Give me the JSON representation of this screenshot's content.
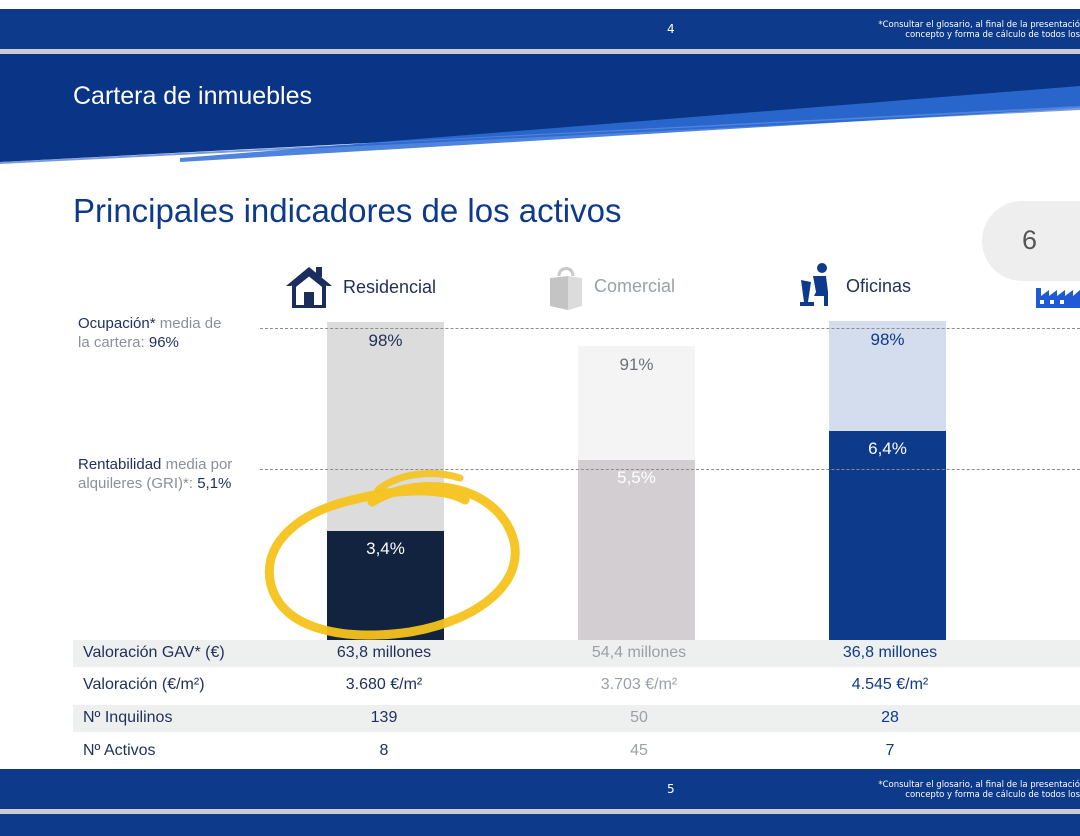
{
  "top_strip": {
    "page_number": "4",
    "disclaimer_line1": "*Consultar el glosario, al final de la presentació",
    "disclaimer_line2": "concepto y forma de cálculo de todos los"
  },
  "header": {
    "title": "Cartera de inmuebles"
  },
  "slide_title": "Principales indicadores de los activos",
  "page_badge": "6",
  "categories": [
    {
      "label": "Residencial",
      "icon": "house-icon",
      "color": "#1a2d5c"
    },
    {
      "label": "Comercial",
      "icon": "shopping-bag-icon",
      "color": "#9aa0a8"
    },
    {
      "label": "Oficinas",
      "icon": "office-worker-icon",
      "color": "#0d3a8a"
    },
    {
      "label": "",
      "icon": "factory-icon",
      "color": "#1f5ad6"
    }
  ],
  "notes": {
    "occupancy": {
      "key": "Ocupación*",
      "text1": " media de",
      "text2": "la cartera: ",
      "value": "96%"
    },
    "yield": {
      "key": "Rentabilidad",
      "text1": " media por",
      "text2": "alquileres (GRI)*: ",
      "value": "5,1%"
    }
  },
  "chart_data": {
    "type": "bar",
    "categories": [
      "Residencial",
      "Comercial",
      "Oficinas"
    ],
    "series": [
      {
        "name": "Ocupación",
        "values": [
          98,
          91,
          98
        ],
        "labels": [
          "98%",
          "91%",
          "98%"
        ],
        "colors": [
          "#dcdcdc",
          "#f4f4f4",
          "#d4ddee"
        ]
      },
      {
        "name": "Rentabilidad",
        "values": [
          3.4,
          5.5,
          6.4
        ],
        "labels": [
          "3,4%",
          "5,5%",
          "6,4%"
        ],
        "colors": [
          "#12233f",
          "#d2ced1",
          "#0d3a8a"
        ]
      }
    ],
    "reference_lines": {
      "occupancy_avg": 96,
      "yield_avg": 5.1
    }
  },
  "table": {
    "rows": [
      {
        "label": "Valoración GAV* (€)",
        "values": [
          "63,8 millones",
          "54,4 millones",
          "36,8 millones"
        ]
      },
      {
        "label": "Valoración (€/m²)",
        "values": [
          "3.680 €/m²",
          "3.703 €/m²",
          "4.545 €/m²"
        ]
      },
      {
        "label": "Nº Inquilinos",
        "values": [
          "139",
          "50",
          "28"
        ]
      },
      {
        "label": "Nº Activos",
        "values": [
          "8",
          "45",
          "7"
        ]
      }
    ],
    "value_colors": [
      "#1f2f5a",
      "#9aa0a8",
      "#0d3a8a"
    ]
  },
  "bottom_strip": {
    "page_number": "5",
    "disclaimer_line1": "*Consultar el glosario, al final de la presentació",
    "disclaimer_line2": "concepto y forma de cálculo de todos los"
  },
  "annotation": {
    "color": "#f5c21b"
  }
}
